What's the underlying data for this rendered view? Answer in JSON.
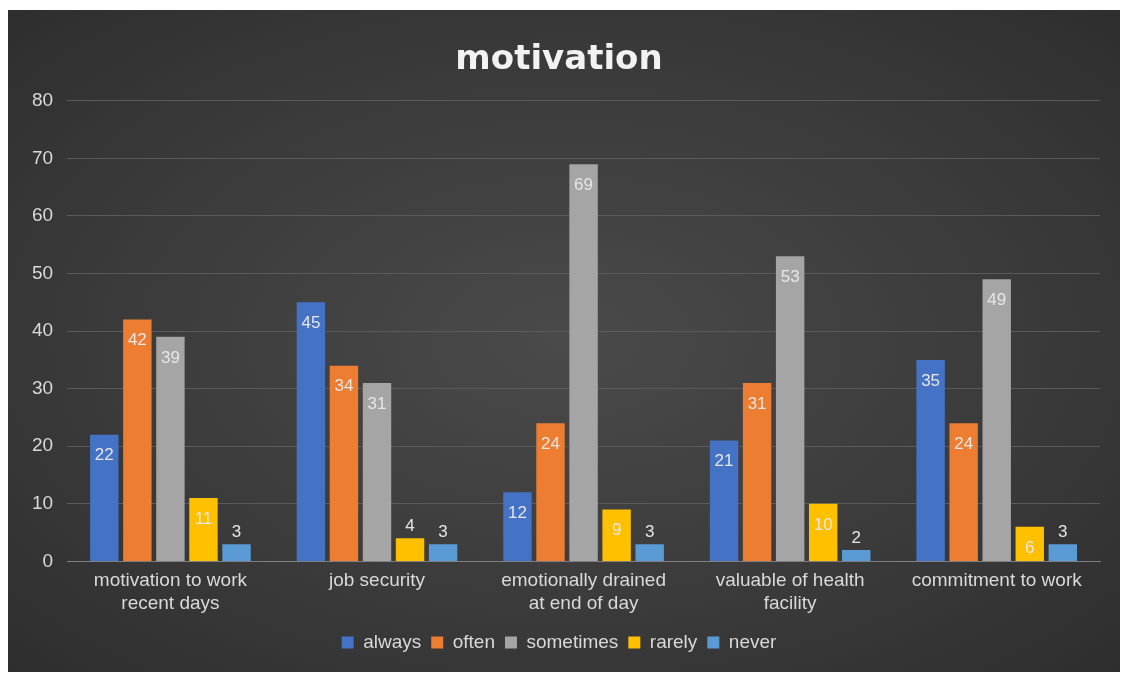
{
  "chart_data": {
    "type": "bar",
    "title": "motivation",
    "categories": [
      "motivation to work recent days",
      "job security",
      "emotionally drained at end of day",
      "valuable of health facility",
      "commitment to work"
    ],
    "series": [
      {
        "name": "always",
        "color": "#4472c4",
        "values": [
          22,
          45,
          12,
          21,
          35
        ]
      },
      {
        "name": "often",
        "color": "#ed7d31",
        "values": [
          42,
          34,
          24,
          31,
          24
        ]
      },
      {
        "name": "sometimes",
        "color": "#a5a5a5",
        "values": [
          39,
          31,
          69,
          53,
          49
        ]
      },
      {
        "name": "rarely",
        "color": "#ffc000",
        "values": [
          11,
          4,
          9,
          10,
          6
        ]
      },
      {
        "name": "never",
        "color": "#5b9bd5",
        "values": [
          3,
          3,
          3,
          2,
          3
        ]
      }
    ],
    "ylim": [
      0,
      80
    ],
    "yticks": [
      0,
      10,
      20,
      30,
      40,
      50,
      60,
      70,
      80
    ],
    "grid": "y",
    "legend": "bottom",
    "data_labels": true
  }
}
